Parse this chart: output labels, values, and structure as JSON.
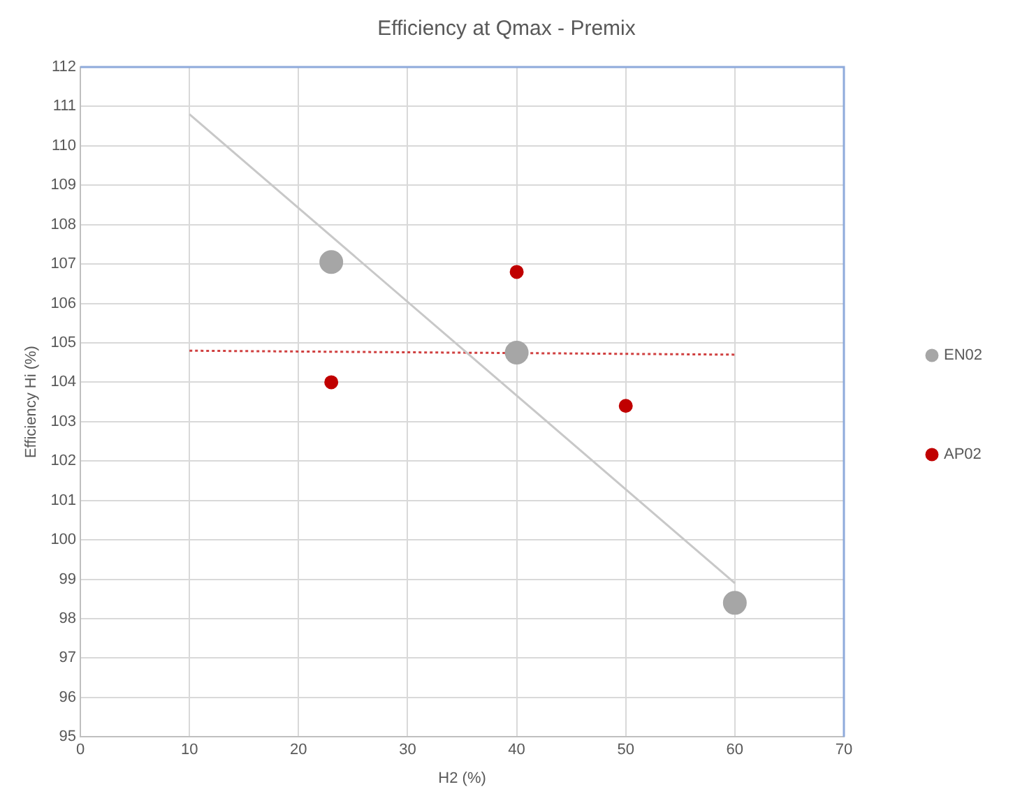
{
  "chart_data": {
    "type": "scatter",
    "title": "Efficiency at Qmax - Premix",
    "xlabel": "H2 (%)",
    "ylabel": "Efficiency Hi (%)",
    "series": [
      {
        "name": "EN02",
        "marker": "circle",
        "color": "#a6a6a6",
        "x": [
          23,
          40,
          60
        ],
        "values": [
          107.05,
          104.75,
          98.4
        ]
      },
      {
        "name": "AP02",
        "marker": "circle",
        "color": "#c00000",
        "x": [
          23,
          40,
          50
        ],
        "values": [
          104.0,
          106.8,
          103.4
        ]
      },
      {
        "type": "line",
        "marker": "none",
        "color": "#c8c8c8",
        "line_style": "solid",
        "x": [
          10,
          60
        ],
        "values": [
          110.8,
          98.9
        ]
      },
      {
        "type": "line",
        "marker": "none",
        "color": "#d04040",
        "line_style": "dotted",
        "x": [
          10,
          60
        ],
        "values": [
          104.8,
          104.7
        ]
      }
    ],
    "xlim": [
      0,
      70
    ],
    "xticks": [
      0,
      10,
      20,
      30,
      40,
      50,
      60,
      70
    ],
    "ylim": [
      95,
      112
    ],
    "yticks": [
      95,
      96,
      97,
      98,
      99,
      100,
      101,
      102,
      103,
      104,
      105,
      106,
      107,
      108,
      109,
      110,
      111,
      112
    ],
    "grid": true,
    "legend": "right"
  }
}
